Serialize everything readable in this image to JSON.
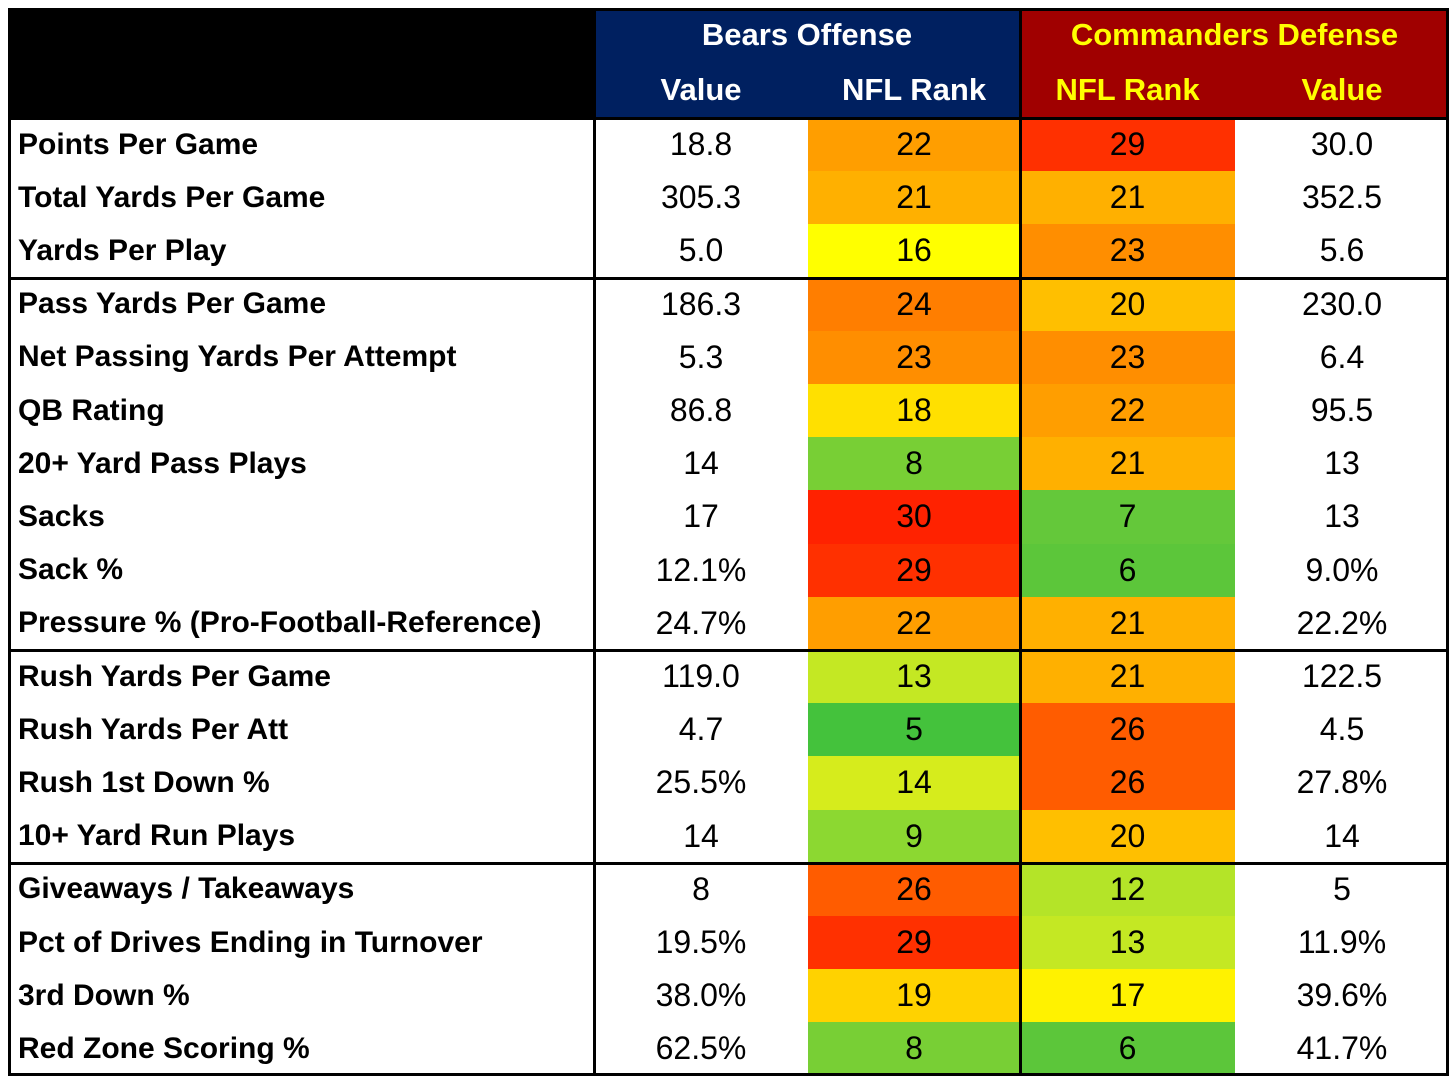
{
  "chart_data": {
    "type": "table",
    "header": {
      "bears_group": "Bears Offense",
      "commanders_group": "Commanders Defense",
      "bears_value": "Value",
      "bears_rank": "NFL Rank",
      "commanders_rank": "NFL Rank",
      "commanders_value": "Value"
    },
    "header_colors": {
      "corner": "#000000",
      "bears_bg": "#002060",
      "bears_text": "#ffffff",
      "commanders_bg": "#a00000",
      "commanders_text": "#ffff00"
    },
    "sections": [
      {
        "rows": [
          {
            "metric": "Points Per Game",
            "bears_value": "18.8",
            "bears_rank": 22,
            "commanders_rank": 29,
            "commanders_value": "30.0"
          },
          {
            "metric": "Total Yards Per Game",
            "bears_value": "305.3",
            "bears_rank": 21,
            "commanders_rank": 21,
            "commanders_value": "352.5"
          },
          {
            "metric": "Yards Per Play",
            "bears_value": "5.0",
            "bears_rank": 16,
            "commanders_rank": 23,
            "commanders_value": "5.6"
          }
        ]
      },
      {
        "rows": [
          {
            "metric": "Pass Yards Per Game",
            "bears_value": "186.3",
            "bears_rank": 24,
            "commanders_rank": 20,
            "commanders_value": "230.0"
          },
          {
            "metric": "Net Passing Yards Per Attempt",
            "bears_value": "5.3",
            "bears_rank": 23,
            "commanders_rank": 23,
            "commanders_value": "6.4"
          },
          {
            "metric": "QB Rating",
            "bears_value": "86.8",
            "bears_rank": 18,
            "commanders_rank": 22,
            "commanders_value": "95.5"
          },
          {
            "metric": "20+ Yard Pass Plays",
            "bears_value": "14",
            "bears_rank": 8,
            "commanders_rank": 21,
            "commanders_value": "13"
          },
          {
            "metric": "Sacks",
            "bears_value": "17",
            "bears_rank": 30,
            "commanders_rank": 7,
            "commanders_value": "13"
          },
          {
            "metric": "Sack %",
            "bears_value": "12.1%",
            "bears_rank": 29,
            "commanders_rank": 6,
            "commanders_value": "9.0%"
          },
          {
            "metric": "Pressure % (Pro-Football-Reference)",
            "bears_value": "24.7%",
            "bears_rank": 22,
            "commanders_rank": 21,
            "commanders_value": "22.2%"
          }
        ]
      },
      {
        "rows": [
          {
            "metric": "Rush Yards Per Game",
            "bears_value": "119.0",
            "bears_rank": 13,
            "commanders_rank": 21,
            "commanders_value": "122.5"
          },
          {
            "metric": "Rush Yards Per Att",
            "bears_value": "4.7",
            "bears_rank": 5,
            "commanders_rank": 26,
            "commanders_value": "4.5"
          },
          {
            "metric": "Rush 1st Down %",
            "bears_value": "25.5%",
            "bears_rank": 14,
            "commanders_rank": 26,
            "commanders_value": "27.8%"
          },
          {
            "metric": "10+ Yard Run Plays",
            "bears_value": "14",
            "bears_rank": 9,
            "commanders_rank": 20,
            "commanders_value": "14"
          }
        ]
      },
      {
        "rows": [
          {
            "metric": "Giveaways / Takeaways",
            "bears_value": "8",
            "bears_rank": 26,
            "commanders_rank": 12,
            "commanders_value": "5"
          },
          {
            "metric": "Pct of Drives Ending in Turnover",
            "bears_value": "19.5%",
            "bears_rank": 29,
            "commanders_rank": 13,
            "commanders_value": "11.9%"
          },
          {
            "metric": "3rd Down %",
            "bears_value": "38.0%",
            "bears_rank": 19,
            "commanders_rank": 17,
            "commanders_value": "39.6%"
          },
          {
            "metric": "Red Zone Scoring %",
            "bears_value": "62.5%",
            "bears_rank": 8,
            "commanders_rank": 6,
            "commanders_value": "41.7%"
          }
        ]
      }
    ],
    "rank_colors": {
      "5": "#44c23c",
      "6": "#5cc63a",
      "7": "#64c83a",
      "8": "#78cf35",
      "9": "#8cd831",
      "12": "#b4e428",
      "13": "#c4e823",
      "14": "#d6ec1c",
      "16": "#ffff00",
      "17": "#fff200",
      "18": "#ffe000",
      "19": "#ffd200",
      "20": "#ffbf00",
      "21": "#ffb000",
      "22": "#ff9e00",
      "23": "#ff8e00",
      "24": "#ff7e00",
      "26": "#ff5c00",
      "29": "#ff3000",
      "30": "#ff2200"
    }
  }
}
